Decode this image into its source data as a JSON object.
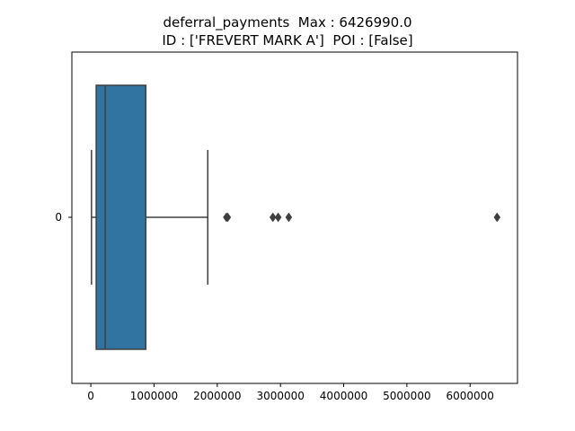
{
  "title_lines": [
    "deferral_payments  Max : 6426990.0",
    "ID : ['FREVERT MARK A']  POI : [False]"
  ],
  "colors": {
    "box_fill": "#3274a1",
    "line": "#3f3f3f",
    "axes": "#000000"
  },
  "chart_data": {
    "type": "box",
    "orientation": "horizontal",
    "title": "deferral_payments  Max : 6426990.0\nID : ['FREVERT MARK A']  POI : [False]",
    "xlabel": "",
    "ylabel": "",
    "categories": [
      "0"
    ],
    "xlim": [
      -300000,
      6750000
    ],
    "xticks": [
      0,
      1000000,
      2000000,
      3000000,
      4000000,
      5000000,
      6000000
    ],
    "xtick_labels": [
      "0",
      "1000000",
      "2000000",
      "3000000",
      "4000000",
      "5000000",
      "6000000"
    ],
    "box": {
      "whisker_low": 10000,
      "q1": 85000,
      "median": 227000,
      "q3": 870000,
      "whisker_high": 1850000
    },
    "outliers": [
      2144000,
      2165000,
      2880000,
      2964000,
      3131000,
      6426990
    ]
  }
}
